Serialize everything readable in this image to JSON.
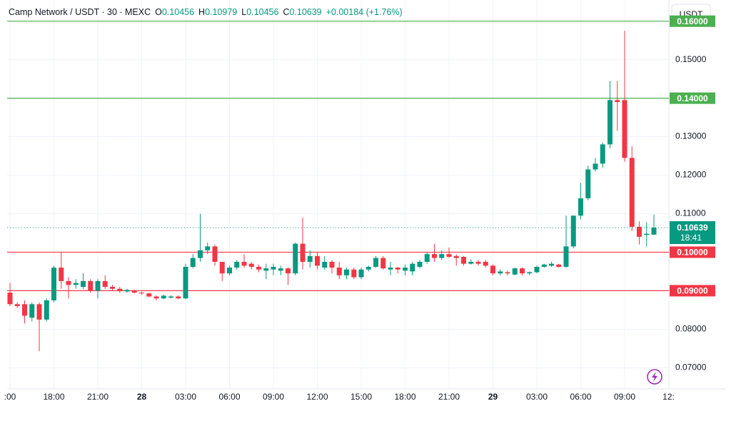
{
  "chart_data": {
    "type": "candlestick",
    "title": "Camp Network / USDT · 30 · MEXC",
    "ohlc_keys": [
      "O",
      "H",
      "L",
      "C"
    ],
    "change": "+0.00184 (+1.76%)",
    "currency": "USDT",
    "countdown": "18:41",
    "up_color": "#089981",
    "down_color": "#f23645",
    "categories": [
      ":00",
      null,
      null,
      null,
      null,
      null,
      "18:00",
      null,
      null,
      null,
      null,
      null,
      "21:00",
      null,
      null,
      null,
      null,
      null,
      "28",
      null,
      null,
      null,
      null,
      null,
      "03:00",
      null,
      null,
      null,
      null,
      null,
      "06:00",
      null,
      null,
      null,
      null,
      null,
      "09:00",
      null,
      null,
      null,
      null,
      null,
      "12:00",
      null,
      null,
      null,
      null,
      null,
      "15:00",
      null,
      null,
      null,
      null,
      null,
      "18:00",
      null,
      null,
      null,
      null,
      null,
      "21:00",
      null,
      null,
      null,
      null,
      null,
      "29",
      null,
      null,
      null,
      null,
      null,
      "03:00",
      null,
      null,
      null,
      null,
      null,
      "06:00",
      null,
      null,
      null,
      null,
      null,
      "09:00",
      null,
      null,
      null,
      null,
      null,
      "12:"
    ],
    "open": [
      0.0895,
      0.0865,
      0.0865,
      0.083,
      0.0865,
      0.0825,
      0.0875,
      0.096,
      0.0925,
      0.0915,
      0.091,
      0.0925,
      0.09,
      0.0925,
      0.091,
      0.0905,
      0.0898,
      0.09,
      0.0895,
      0.0893,
      0.0885,
      0.088,
      0.0882,
      0.0885,
      0.088,
      0.0962,
      0.0985,
      0.1005,
      0.1015,
      0.0975,
      0.0945,
      0.096,
      0.0975,
      0.097,
      0.0962,
      0.0952,
      0.0955,
      0.0952,
      0.0958,
      0.0945,
      0.1022,
      0.0975,
      0.099,
      0.096,
      0.0975,
      0.096,
      0.094,
      0.0955,
      0.0935,
      0.0955,
      0.0962,
      0.0985,
      0.0955,
      0.096,
      0.0952,
      0.095,
      0.0962,
      0.0975,
      0.0995,
      0.0985,
      0.0995,
      0.099,
      0.0988,
      0.097,
      0.0975,
      0.0975,
      0.0965,
      0.0945,
      0.0948,
      0.0942,
      0.0958,
      0.0945,
      0.0948,
      0.0962,
      0.0965,
      0.0968,
      0.0962,
      0.1015,
      0.1095,
      0.114,
      0.1215,
      0.123,
      0.128,
      0.1395,
      0.1395,
      0.1245,
      0.1066,
      0.1045,
      0.10456,
      null,
      null
    ],
    "high": [
      0.092,
      0.087,
      0.0875,
      0.087,
      0.087,
      0.088,
      0.0965,
      0.1,
      0.0935,
      0.093,
      0.0945,
      0.093,
      0.093,
      0.094,
      0.0915,
      0.091,
      0.0905,
      0.0902,
      0.0898,
      0.0895,
      0.0888,
      0.089,
      0.0888,
      0.0888,
      0.097,
      0.0995,
      0.11,
      0.1025,
      0.102,
      0.0975,
      0.0965,
      0.098,
      0.0995,
      0.0975,
      0.0968,
      0.097,
      0.097,
      0.0965,
      0.096,
      0.1025,
      0.109,
      0.1005,
      0.1,
      0.099,
      0.098,
      0.0975,
      0.096,
      0.096,
      0.096,
      0.0965,
      0.099,
      0.099,
      0.0975,
      0.0962,
      0.0968,
      0.0975,
      0.098,
      0.1,
      0.1022,
      0.1005,
      0.1012,
      0.0995,
      0.099,
      0.0982,
      0.098,
      0.098,
      0.0968,
      0.0955,
      0.0952,
      0.096,
      0.096,
      0.095,
      0.0965,
      0.097,
      0.0975,
      0.097,
      0.1095,
      0.1095,
      0.118,
      0.1225,
      0.1245,
      0.1285,
      0.1445,
      0.1445,
      0.1575,
      0.1275,
      0.108,
      0.1078,
      0.10979,
      null,
      null
    ],
    "low": [
      0.086,
      0.0855,
      0.0815,
      0.082,
      0.0743,
      0.082,
      0.087,
      0.0905,
      0.088,
      0.0905,
      0.0905,
      0.0895,
      0.088,
      0.0905,
      0.09,
      0.0895,
      0.0895,
      0.0893,
      0.089,
      0.0883,
      0.0875,
      0.0878,
      0.088,
      0.0878,
      0.0878,
      0.0958,
      0.0975,
      0.0995,
      0.0965,
      0.0925,
      0.094,
      0.0955,
      0.096,
      0.0955,
      0.0948,
      0.093,
      0.094,
      0.094,
      0.0915,
      0.094,
      0.0955,
      0.096,
      0.0955,
      0.0955,
      0.0945,
      0.093,
      0.093,
      0.093,
      0.093,
      0.095,
      0.096,
      0.0955,
      0.094,
      0.0945,
      0.094,
      0.094,
      0.0958,
      0.097,
      0.0975,
      0.098,
      0.0985,
      0.0965,
      0.0965,
      0.0968,
      0.0965,
      0.096,
      0.094,
      0.094,
      0.094,
      0.094,
      0.094,
      0.094,
      0.0945,
      0.096,
      0.0962,
      0.096,
      0.096,
      0.101,
      0.1085,
      0.1135,
      0.121,
      0.122,
      0.127,
      0.1315,
      0.1235,
      0.1055,
      0.102,
      0.1015,
      0.10456,
      null,
      null
    ],
    "close": [
      0.0865,
      0.086,
      0.0835,
      0.0865,
      0.0825,
      0.0875,
      0.096,
      0.0925,
      0.0915,
      0.092,
      0.0925,
      0.09,
      0.0925,
      0.091,
      0.0905,
      0.09,
      0.0902,
      0.0895,
      0.0893,
      0.0885,
      0.088,
      0.0887,
      0.0885,
      0.088,
      0.0962,
      0.0985,
      0.1005,
      0.1015,
      0.0975,
      0.0945,
      0.096,
      0.0975,
      0.0965,
      0.0962,
      0.0955,
      0.0958,
      0.0962,
      0.0958,
      0.0945,
      0.1022,
      0.0975,
      0.099,
      0.0965,
      0.0975,
      0.096,
      0.094,
      0.0955,
      0.0935,
      0.0955,
      0.0962,
      0.0985,
      0.0958,
      0.096,
      0.0955,
      0.096,
      0.097,
      0.0975,
      0.0995,
      0.0985,
      0.0995,
      0.0988,
      0.0985,
      0.097,
      0.0975,
      0.097,
      0.0965,
      0.0945,
      0.095,
      0.0945,
      0.0958,
      0.0945,
      0.0948,
      0.0962,
      0.0968,
      0.097,
      0.0962,
      0.1015,
      0.1095,
      0.114,
      0.1215,
      0.123,
      0.128,
      0.1395,
      0.139,
      0.1245,
      0.1066,
      0.104,
      0.1048,
      0.10639,
      null,
      null
    ],
    "ylim": [
      0.0645,
      0.1655
    ],
    "yticks": [
      {
        "value": 0.07,
        "label": "0.07000"
      },
      {
        "value": 0.08,
        "label": "0.08000"
      },
      {
        "value": 0.11,
        "label": "0.11000"
      },
      {
        "value": 0.12,
        "label": "0.12000"
      },
      {
        "value": 0.13,
        "label": "0.13000"
      },
      {
        "value": 0.15,
        "label": "0.15000"
      }
    ],
    "hlines": [
      {
        "value": 0.16,
        "label": "0.16000",
        "color": "#4caf50"
      },
      {
        "value": 0.14,
        "label": "0.14000",
        "color": "#4caf50"
      },
      {
        "value": 0.1,
        "label": "0.10000",
        "color": "#f23645"
      },
      {
        "value": 0.09,
        "label": "0.09000",
        "color": "#f23645"
      }
    ],
    "grid": true
  }
}
